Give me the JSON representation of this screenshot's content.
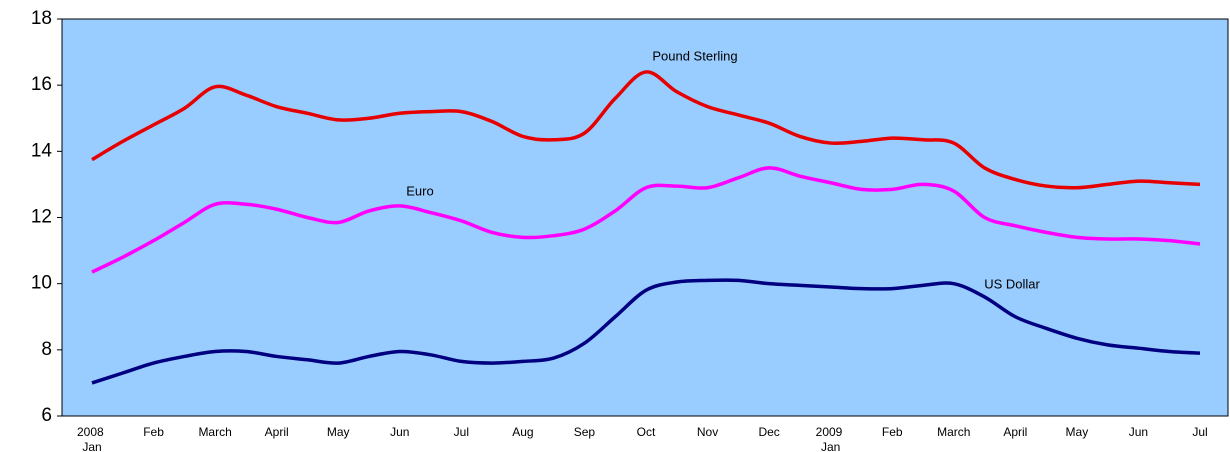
{
  "chart_data": {
    "type": "line",
    "categories": [
      "2008 Jan",
      null,
      "Feb",
      null,
      "March",
      null,
      "April",
      null,
      "May",
      null,
      "Jun",
      null,
      "Jul",
      null,
      "Aug",
      null,
      "Sep",
      null,
      "Oct",
      null,
      "Nov",
      null,
      "Dec",
      null,
      "2009 Jan",
      null,
      "Feb",
      null,
      "March",
      null,
      "April",
      null,
      "May",
      null,
      "Jun",
      null,
      "Jul"
    ],
    "series": [
      {
        "name": "Pound Sterling",
        "color": "#e60000",
        "values": [
          13.75,
          14.3,
          14.8,
          15.3,
          15.95,
          15.7,
          15.35,
          15.15,
          14.95,
          15.0,
          15.15,
          15.2,
          15.2,
          14.9,
          14.45,
          14.35,
          14.55,
          15.6,
          16.4,
          15.8,
          15.35,
          15.1,
          14.85,
          14.45,
          14.25,
          14.3,
          14.4,
          14.35,
          14.25,
          13.5,
          13.15,
          12.95,
          12.9,
          13.0,
          13.1,
          13.05,
          13.0
        ]
      },
      {
        "name": "Euro",
        "color": "#ff00ff",
        "values": [
          10.35,
          10.8,
          11.3,
          11.85,
          12.4,
          12.4,
          12.25,
          12.0,
          11.85,
          12.2,
          12.35,
          12.15,
          11.9,
          11.55,
          11.4,
          11.45,
          11.65,
          12.2,
          12.9,
          12.95,
          12.9,
          13.2,
          13.5,
          13.25,
          13.05,
          12.85,
          12.85,
          13.0,
          12.8,
          12.0,
          11.75,
          11.55,
          11.4,
          11.35,
          11.35,
          11.3,
          11.2
        ]
      },
      {
        "name": "US Dollar",
        "color": "#000080",
        "values": [
          7.0,
          7.3,
          7.6,
          7.8,
          7.95,
          7.95,
          7.8,
          7.7,
          7.6,
          7.8,
          7.95,
          7.85,
          7.65,
          7.6,
          7.65,
          7.75,
          8.2,
          9.0,
          9.8,
          10.05,
          10.1,
          10.1,
          10.0,
          9.95,
          9.9,
          9.85,
          9.85,
          9.95,
          10.0,
          9.6,
          9.0,
          8.65,
          8.35,
          8.15,
          8.05,
          7.95,
          7.9
        ]
      }
    ],
    "ylim": [
      6,
      18
    ],
    "yticks": [
      6,
      8,
      10,
      12,
      14,
      16,
      18
    ],
    "grid": false,
    "background": "#99ccff"
  }
}
